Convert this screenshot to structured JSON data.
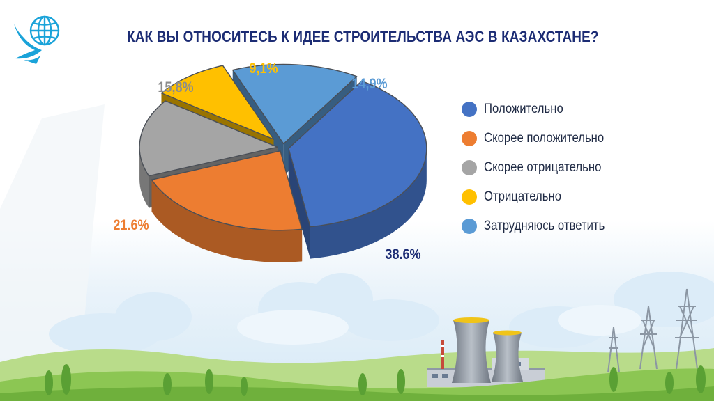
{
  "header": {
    "title": "КАК ВЫ ОТНОСИТЕСЬ К ИДЕЕ СТРОИТЕЛЬСТВА АЭС В КАЗАХСТАНЕ?"
  },
  "logo": {
    "icon": "globe-bird-logo",
    "color": "#1aa3d9"
  },
  "chart_data": {
    "type": "pie",
    "title": "КАК ВЫ ОТНОСИТЕСЬ К ИДЕЕ СТРОИТЕЛЬСТВА АЭС В КАЗАХСТАНЕ?",
    "legend_position": "right",
    "slices": [
      {
        "name": "Положительно",
        "value": 38.6,
        "label": "38.6%",
        "color": "#4472c4"
      },
      {
        "name": "Скорее положительно",
        "value": 21.6,
        "label": "21.6%",
        "color": "#ed7d31"
      },
      {
        "name": "Скорее отрицательно",
        "value": 15.8,
        "label": "15,8%",
        "color": "#a5a5a5"
      },
      {
        "name": "Отрицательно",
        "value": 9.1,
        "label": "9,1%",
        "color": "#ffc000"
      },
      {
        "name": "Затрудняюсь ответить",
        "value": 14.9,
        "label": "14,9%",
        "color": "#5b9bd5"
      }
    ]
  }
}
